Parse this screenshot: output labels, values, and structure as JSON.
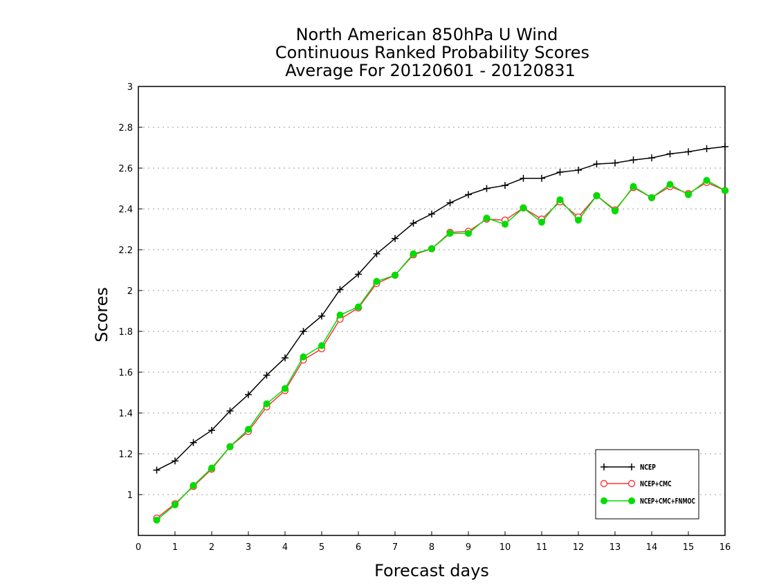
{
  "chart_data": {
    "type": "line",
    "title": [
      "North American 850hPa U Wind",
      "Continuous Ranked Probability Scores",
      "Average For 20120601 - 20120831"
    ],
    "xlabel": "Forecast days",
    "ylabel": "Scores",
    "xlim": [
      0,
      16
    ],
    "ylim": [
      0.8,
      3.0
    ],
    "x_ticks": [
      "0",
      "1",
      "2",
      "3",
      "4",
      "5",
      "6",
      "7",
      "8",
      "9",
      "10",
      "11",
      "12",
      "13",
      "14",
      "15",
      "16"
    ],
    "y_ticks": [
      "1",
      "1.2",
      "1.4",
      "1.6",
      "1.8",
      "2",
      "2.2",
      "2.4",
      "2.6",
      "2.8",
      "3"
    ],
    "grid": true,
    "legend_position": "bottom-right",
    "x": [
      0.5,
      1,
      1.5,
      2,
      2.5,
      3,
      3.5,
      4,
      4.5,
      5,
      5.5,
      6,
      6.5,
      7,
      7.5,
      8,
      8.5,
      9,
      9.5,
      10,
      10.5,
      11,
      11.5,
      12,
      12.5,
      13,
      13.5,
      14,
      14.5,
      15,
      15.5,
      16
    ],
    "series": [
      {
        "name": "NCEP",
        "color": "#000000",
        "marker": "plus",
        "values": [
          1.12,
          1.165,
          1.255,
          1.315,
          1.41,
          1.49,
          1.585,
          1.67,
          1.8,
          1.875,
          2.005,
          2.08,
          2.18,
          2.255,
          2.33,
          2.375,
          2.43,
          2.47,
          2.5,
          2.515,
          2.55,
          2.55,
          2.58,
          2.59,
          2.62,
          2.625,
          2.64,
          2.65,
          2.67,
          2.68,
          2.695,
          2.705
        ]
      },
      {
        "name": "NCEP+CMC",
        "color": "#ff3333",
        "marker": "open-circle",
        "values": [
          0.885,
          0.955,
          1.04,
          1.125,
          1.235,
          1.31,
          1.43,
          1.51,
          1.66,
          1.715,
          1.86,
          1.915,
          2.035,
          2.075,
          2.175,
          2.205,
          2.285,
          2.29,
          2.35,
          2.345,
          2.405,
          2.35,
          2.435,
          2.36,
          2.465,
          2.395,
          2.505,
          2.455,
          2.51,
          2.475,
          2.53,
          2.49
        ]
      },
      {
        "name": "NCEP+CMC+FNMOC",
        "color": "#00dd00",
        "marker": "filled-circle",
        "values": [
          0.875,
          0.95,
          1.045,
          1.13,
          1.235,
          1.32,
          1.445,
          1.52,
          1.675,
          1.73,
          1.88,
          1.92,
          2.045,
          2.075,
          2.18,
          2.205,
          2.28,
          2.28,
          2.355,
          2.325,
          2.405,
          2.335,
          2.445,
          2.345,
          2.465,
          2.39,
          2.51,
          2.455,
          2.52,
          2.47,
          2.54,
          2.49
        ]
      }
    ]
  }
}
